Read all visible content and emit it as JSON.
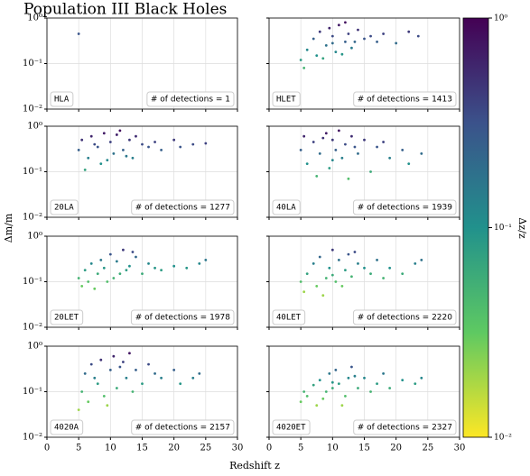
{
  "figure": {
    "title": "Population III Black Holes",
    "xlabel": "Redshift z",
    "ylabel": "Δm/m"
  },
  "colorbar": {
    "label": "Δz/z",
    "lim": [
      0.01,
      1
    ],
    "ticks": [
      {
        "value": 0.01,
        "label": "10⁻²"
      },
      {
        "value": 0.1,
        "label": "10⁻¹"
      },
      {
        "value": 1,
        "label": "10⁰"
      }
    ],
    "colormap": "viridis_r",
    "log": true
  },
  "chart_data": [
    {
      "type": "scatter",
      "label": "HLA",
      "annotation": "# of detections = 1",
      "log_y": true,
      "grid": true,
      "x": [
        5
      ],
      "values": [
        0.45
      ],
      "colors": [
        0.3
      ],
      "xlim": [
        0,
        30
      ],
      "xticks": [
        0,
        5,
        10,
        15,
        20,
        25,
        30
      ],
      "ylim": [
        0.01,
        1
      ],
      "yticks": [
        {
          "value": 0.01,
          "label": "10⁻²"
        },
        {
          "value": 0.1,
          "label": "10⁻¹"
        },
        {
          "value": 1,
          "label": "10⁰"
        }
      ]
    },
    {
      "type": "scatter",
      "label": "HLET",
      "annotation": "# of detections = 1413",
      "log_y": true,
      "grid": true,
      "x": [
        5,
        5.5,
        6,
        7,
        7.5,
        8,
        9,
        9.5,
        10,
        10.5,
        11,
        12,
        12.5,
        13,
        14,
        15,
        16,
        17,
        18,
        20,
        22,
        23.5,
        8.5,
        11.5,
        13.5,
        10,
        12
      ],
      "values": [
        0.12,
        0.08,
        0.2,
        0.35,
        0.15,
        0.5,
        0.25,
        0.6,
        0.4,
        0.18,
        0.7,
        0.3,
        0.45,
        0.22,
        0.55,
        0.35,
        0.4,
        0.3,
        0.45,
        0.28,
        0.5,
        0.4,
        0.13,
        0.16,
        0.3,
        0.28,
        0.8
      ],
      "colors": [
        0.08,
        0.05,
        0.12,
        0.25,
        0.1,
        0.45,
        0.18,
        0.6,
        0.35,
        0.12,
        0.7,
        0.25,
        0.4,
        0.15,
        0.5,
        0.3,
        0.35,
        0.25,
        0.4,
        0.2,
        0.45,
        0.35,
        0.07,
        0.09,
        0.22,
        0.2,
        0.8
      ],
      "xlim": [
        0,
        30
      ],
      "xticks": [
        0,
        5,
        10,
        15,
        20,
        25,
        30
      ],
      "ylim": [
        0.01,
        1
      ],
      "yticks": [
        {
          "value": 0.01,
          "label": "10⁻²"
        },
        {
          "value": 0.1,
          "label": "10⁻¹"
        },
        {
          "value": 1,
          "label": "10⁰"
        }
      ]
    },
    {
      "type": "scatter",
      "label": "20LA",
      "annotation": "# of detections = 1277",
      "log_y": true,
      "grid": true,
      "x": [
        5,
        5.5,
        6,
        6.5,
        7,
        8,
        8.5,
        9,
        10,
        10.5,
        11,
        12,
        13,
        13.5,
        14,
        15,
        16,
        17,
        18,
        20,
        21,
        23,
        25,
        9.5,
        11.5,
        12.5,
        7.5
      ],
      "values": [
        0.3,
        0.5,
        0.11,
        0.2,
        0.6,
        0.35,
        0.15,
        0.7,
        0.45,
        0.25,
        0.65,
        0.3,
        0.5,
        0.2,
        0.6,
        0.4,
        0.35,
        0.45,
        0.3,
        0.5,
        0.35,
        0.4,
        0.42,
        0.18,
        0.8,
        0.22,
        0.4
      ],
      "colors": [
        0.25,
        0.5,
        0.07,
        0.14,
        0.6,
        0.3,
        0.1,
        0.7,
        0.4,
        0.18,
        0.65,
        0.25,
        0.45,
        0.14,
        0.55,
        0.35,
        0.3,
        0.4,
        0.25,
        0.45,
        0.3,
        0.35,
        0.4,
        0.12,
        0.85,
        0.16,
        0.35
      ],
      "xlim": [
        0,
        30
      ],
      "xticks": [
        0,
        5,
        10,
        15,
        20,
        25,
        30
      ],
      "ylim": [
        0.01,
        1
      ],
      "yticks": [
        {
          "value": 0.01,
          "label": "10⁻²"
        },
        {
          "value": 0.1,
          "label": "10⁻¹"
        },
        {
          "value": 1,
          "label": "10⁰"
        }
      ]
    },
    {
      "type": "scatter",
      "label": "40LA",
      "annotation": "# of detections = 1939",
      "log_y": true,
      "grid": true,
      "x": [
        5,
        5.5,
        6,
        7,
        7.5,
        8,
        9,
        9.5,
        10,
        10.5,
        11,
        11.5,
        12,
        13,
        14,
        15,
        16,
        17,
        18,
        19,
        21,
        22,
        24,
        8.5,
        12.5,
        13.5,
        10
      ],
      "values": [
        0.3,
        0.6,
        0.15,
        0.45,
        0.08,
        0.25,
        0.7,
        0.12,
        0.5,
        0.3,
        0.8,
        0.2,
        0.4,
        0.6,
        0.25,
        0.5,
        0.1,
        0.35,
        0.45,
        0.2,
        0.3,
        0.15,
        0.25,
        0.55,
        0.07,
        0.35,
        0.18
      ],
      "colors": [
        0.25,
        0.6,
        0.1,
        0.4,
        0.05,
        0.2,
        0.7,
        0.08,
        0.45,
        0.25,
        0.8,
        0.14,
        0.35,
        0.55,
        0.2,
        0.45,
        0.06,
        0.3,
        0.4,
        0.14,
        0.25,
        0.1,
        0.2,
        0.5,
        0.04,
        0.3,
        0.12
      ],
      "xlim": [
        0,
        30
      ],
      "xticks": [
        0,
        5,
        10,
        15,
        20,
        25,
        30
      ],
      "ylim": [
        0.01,
        1
      ],
      "yticks": [
        {
          "value": 0.01,
          "label": "10⁻²"
        },
        {
          "value": 0.1,
          "label": "10⁻¹"
        },
        {
          "value": 1,
          "label": "10⁰"
        }
      ]
    },
    {
      "type": "scatter",
      "label": "20LET",
      "annotation": "# of detections = 1978",
      "log_y": true,
      "grid": true,
      "x": [
        5,
        5.5,
        6,
        6.5,
        7,
        8,
        8.5,
        9,
        10,
        10.5,
        11,
        12,
        12.5,
        13,
        14,
        15,
        16,
        17,
        18,
        20,
        22,
        24,
        25,
        9.5,
        11.5,
        13.5,
        7.5
      ],
      "values": [
        0.12,
        0.08,
        0.18,
        0.1,
        0.25,
        0.15,
        0.3,
        0.2,
        0.4,
        0.12,
        0.28,
        0.5,
        0.18,
        0.22,
        0.35,
        0.15,
        0.25,
        0.2,
        0.18,
        0.22,
        0.2,
        0.25,
        0.3,
        0.1,
        0.15,
        0.45,
        0.07
      ],
      "colors": [
        0.05,
        0.03,
        0.08,
        0.04,
        0.12,
        0.06,
        0.16,
        0.09,
        0.3,
        0.05,
        0.15,
        0.45,
        0.08,
        0.1,
        0.22,
        0.06,
        0.12,
        0.09,
        0.08,
        0.1,
        0.09,
        0.12,
        0.16,
        0.04,
        0.06,
        0.35,
        0.03
      ],
      "xlim": [
        0,
        30
      ],
      "xticks": [
        0,
        5,
        10,
        15,
        20,
        25,
        30
      ],
      "ylim": [
        0.01,
        1
      ],
      "yticks": [
        {
          "value": 0.01,
          "label": "10⁻²"
        },
        {
          "value": 0.1,
          "label": "10⁻¹"
        },
        {
          "value": 1,
          "label": "10⁰"
        }
      ]
    },
    {
      "type": "scatter",
      "label": "40LET",
      "annotation": "# of detections = 2220",
      "log_y": true,
      "grid": true,
      "x": [
        5,
        5.5,
        6,
        7,
        7.5,
        8,
        9,
        9.5,
        10,
        10.5,
        11,
        12,
        12.5,
        13,
        14,
        15,
        16,
        17,
        18,
        19,
        21,
        23,
        24,
        8.5,
        11.5,
        13.5,
        10
      ],
      "values": [
        0.1,
        0.06,
        0.15,
        0.25,
        0.08,
        0.35,
        0.12,
        0.2,
        0.5,
        0.1,
        0.3,
        0.18,
        0.4,
        0.13,
        0.25,
        0.2,
        0.15,
        0.3,
        0.12,
        0.2,
        0.15,
        0.25,
        0.3,
        0.05,
        0.08,
        0.45,
        0.14
      ],
      "colors": [
        0.04,
        0.02,
        0.07,
        0.14,
        0.03,
        0.22,
        0.05,
        0.1,
        0.45,
        0.04,
        0.18,
        0.08,
        0.3,
        0.05,
        0.14,
        0.1,
        0.06,
        0.18,
        0.05,
        0.1,
        0.06,
        0.14,
        0.18,
        0.02,
        0.03,
        0.35,
        0.06
      ],
      "xlim": [
        0,
        30
      ],
      "xticks": [
        0,
        5,
        10,
        15,
        20,
        25,
        30
      ],
      "ylim": [
        0.01,
        1
      ],
      "yticks": [
        {
          "value": 0.01,
          "label": "10⁻²"
        },
        {
          "value": 0.1,
          "label": "10⁻¹"
        },
        {
          "value": 1,
          "label": "10⁰"
        }
      ]
    },
    {
      "type": "scatter",
      "label": "4020A",
      "annotation": "# of detections = 2157",
      "log_y": true,
      "grid": true,
      "x": [
        5,
        5.5,
        6,
        6.5,
        7,
        8,
        8.5,
        9,
        10,
        10.5,
        11,
        12,
        12.5,
        13,
        14,
        15,
        16,
        17,
        18,
        20,
        21,
        23,
        24,
        9.5,
        11.5,
        13.5,
        7.5
      ],
      "values": [
        0.04,
        0.1,
        0.25,
        0.06,
        0.4,
        0.15,
        0.5,
        0.08,
        0.3,
        0.6,
        0.12,
        0.45,
        0.2,
        0.7,
        0.3,
        0.15,
        0.4,
        0.25,
        0.2,
        0.3,
        0.15,
        0.2,
        0.25,
        0.05,
        0.35,
        0.1,
        0.2
      ],
      "colors": [
        0.02,
        0.05,
        0.2,
        0.03,
        0.35,
        0.08,
        0.5,
        0.04,
        0.25,
        0.6,
        0.06,
        0.4,
        0.14,
        0.75,
        0.25,
        0.08,
        0.35,
        0.2,
        0.14,
        0.25,
        0.09,
        0.14,
        0.2,
        0.02,
        0.3,
        0.05,
        0.14
      ],
      "xlim": [
        0,
        30
      ],
      "xticks": [
        0,
        5,
        10,
        15,
        20,
        25,
        30
      ],
      "ylim": [
        0.01,
        1
      ],
      "yticks": [
        {
          "value": 0.01,
          "label": "10⁻²"
        },
        {
          "value": 0.1,
          "label": "10⁻¹"
        },
        {
          "value": 1,
          "label": "10⁰"
        }
      ]
    },
    {
      "type": "scatter",
      "label": "4020ET",
      "annotation": "# of detections = 2327",
      "log_y": true,
      "grid": true,
      "x": [
        5,
        5.5,
        6,
        7,
        7.5,
        8,
        9,
        9.5,
        10,
        10.5,
        11,
        12,
        12.5,
        13,
        14,
        15,
        16,
        17,
        18,
        19,
        21,
        23,
        24,
        8.5,
        11.5,
        13.5,
        10
      ],
      "values": [
        0.06,
        0.1,
        0.08,
        0.14,
        0.05,
        0.18,
        0.1,
        0.25,
        0.12,
        0.3,
        0.15,
        0.08,
        0.2,
        0.35,
        0.12,
        0.2,
        0.1,
        0.15,
        0.25,
        0.12,
        0.18,
        0.15,
        0.2,
        0.07,
        0.05,
        0.22,
        0.16
      ],
      "colors": [
        0.03,
        0.05,
        0.04,
        0.07,
        0.02,
        0.1,
        0.05,
        0.16,
        0.06,
        0.22,
        0.08,
        0.04,
        0.12,
        0.3,
        0.06,
        0.12,
        0.05,
        0.08,
        0.16,
        0.06,
        0.1,
        0.08,
        0.12,
        0.03,
        0.02,
        0.14,
        0.09
      ],
      "xlim": [
        0,
        30
      ],
      "xticks": [
        0,
        5,
        10,
        15,
        20,
        25,
        30
      ],
      "ylim": [
        0.01,
        1
      ],
      "yticks": [
        {
          "value": 0.01,
          "label": "10⁻²"
        },
        {
          "value": 0.1,
          "label": "10⁻¹"
        },
        {
          "value": 1,
          "label": "10⁰"
        }
      ]
    }
  ]
}
